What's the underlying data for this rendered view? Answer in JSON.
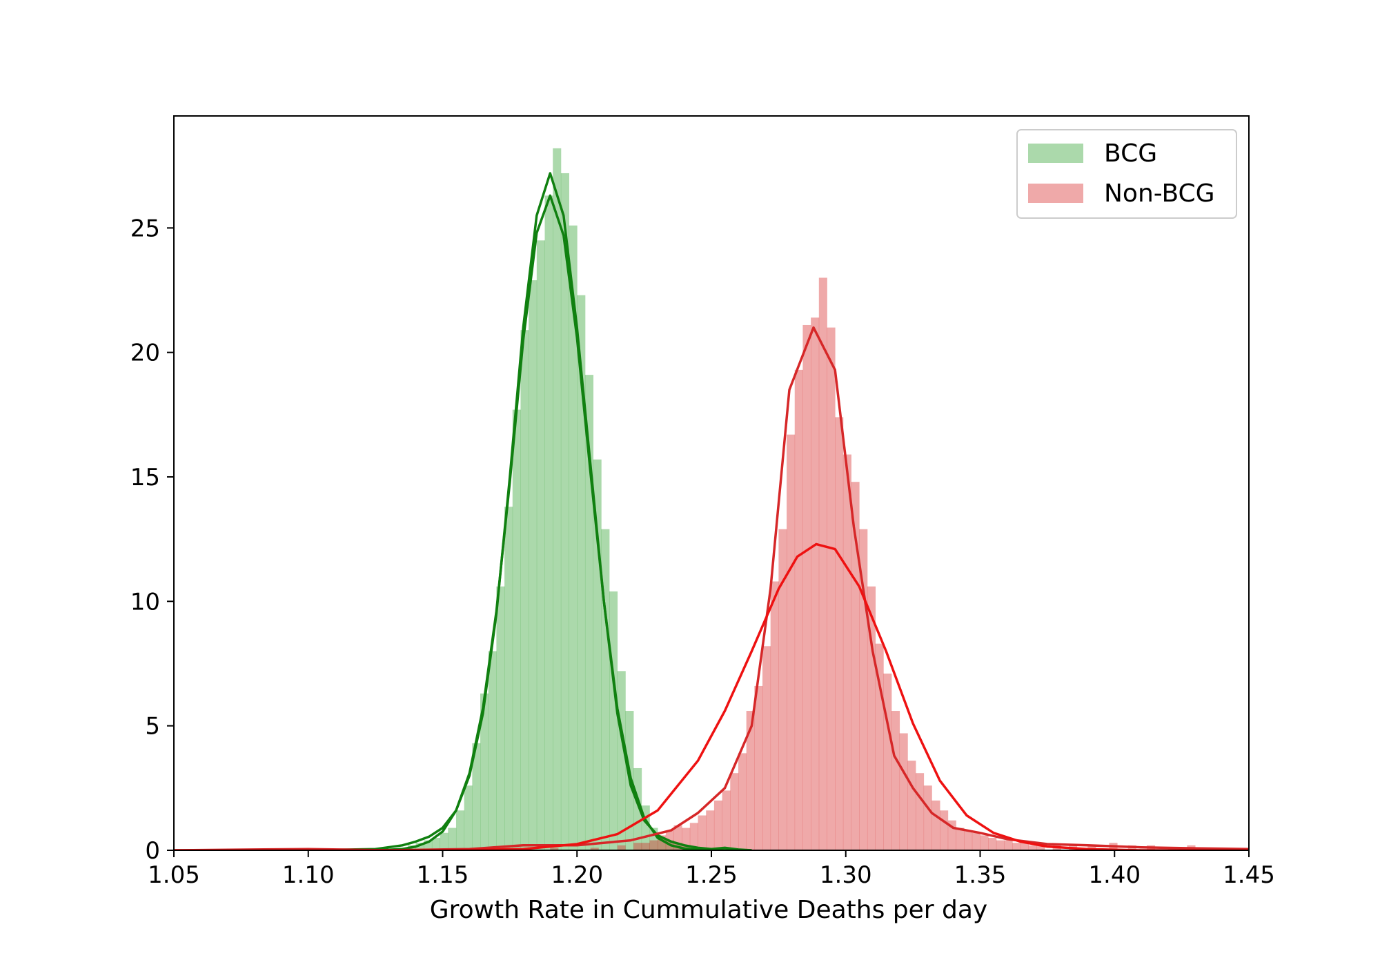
{
  "chart_data": {
    "type": "histogram",
    "title": "",
    "xlabel": "Growth Rate in Cummulative Deaths per day",
    "ylabel": "",
    "xlim": [
      1.05,
      1.45
    ],
    "ylim": [
      0,
      29.5
    ],
    "grid": false,
    "legend_position": "top-right",
    "x_ticks": [
      "1.05",
      "1.10",
      "1.15",
      "1.20",
      "1.25",
      "1.30",
      "1.35",
      "1.40",
      "1.45"
    ],
    "y_ticks": [
      "0",
      "5",
      "10",
      "15",
      "20",
      "25"
    ],
    "series": [
      {
        "name": "BCG",
        "color": "#2ca02c",
        "fill_color": "#2ca02c",
        "line_color": "#108010",
        "bin_width": 0.003,
        "bins": [
          {
            "x": 1.134,
            "y": 0.1
          },
          {
            "x": 1.137,
            "y": 0.2
          },
          {
            "x": 1.14,
            "y": 0.3
          },
          {
            "x": 1.143,
            "y": 0.4
          },
          {
            "x": 1.146,
            "y": 0.5
          },
          {
            "x": 1.149,
            "y": 0.7
          },
          {
            "x": 1.152,
            "y": 0.9
          },
          {
            "x": 1.155,
            "y": 1.6
          },
          {
            "x": 1.158,
            "y": 2.6
          },
          {
            "x": 1.161,
            "y": 4.3
          },
          {
            "x": 1.164,
            "y": 6.3
          },
          {
            "x": 1.167,
            "y": 8.0
          },
          {
            "x": 1.17,
            "y": 10.6
          },
          {
            "x": 1.173,
            "y": 13.8
          },
          {
            "x": 1.176,
            "y": 17.7
          },
          {
            "x": 1.179,
            "y": 20.9
          },
          {
            "x": 1.182,
            "y": 22.9
          },
          {
            "x": 1.185,
            "y": 24.5
          },
          {
            "x": 1.188,
            "y": 26.3
          },
          {
            "x": 1.191,
            "y": 28.2
          },
          {
            "x": 1.194,
            "y": 27.2
          },
          {
            "x": 1.197,
            "y": 25.1
          },
          {
            "x": 1.2,
            "y": 22.3
          },
          {
            "x": 1.203,
            "y": 19.1
          },
          {
            "x": 1.206,
            "y": 15.7
          },
          {
            "x": 1.209,
            "y": 12.9
          },
          {
            "x": 1.212,
            "y": 10.4
          },
          {
            "x": 1.215,
            "y": 7.2
          },
          {
            "x": 1.218,
            "y": 5.6
          },
          {
            "x": 1.221,
            "y": 3.3
          },
          {
            "x": 1.224,
            "y": 1.8
          },
          {
            "x": 1.227,
            "y": 0.9
          },
          {
            "x": 1.23,
            "y": 0.5
          },
          {
            "x": 1.233,
            "y": 0.4
          },
          {
            "x": 1.236,
            "y": 0.3
          },
          {
            "x": 1.239,
            "y": 0.2
          },
          {
            "x": 1.242,
            "y": 0.1
          },
          {
            "x": 1.254,
            "y": 0.1
          }
        ],
        "kde_curves": [
          {
            "name": "",
            "x": [
              1.1,
              1.125,
              1.135,
              1.14,
              1.145,
              1.15,
              1.155,
              1.16,
              1.165,
              1.17,
              1.175,
              1.18,
              1.185,
              1.19,
              1.195,
              1.2,
              1.205,
              1.21,
              1.215,
              1.22,
              1.225,
              1.23,
              1.235,
              1.24,
              1.245,
              1.25,
              1.255,
              1.26,
              1.265
            ],
            "y": [
              0.0,
              0.05,
              0.2,
              0.35,
              0.55,
              0.9,
              1.6,
              3.0,
              5.5,
              9.5,
              15.0,
              21.0,
              25.5,
              27.2,
              25.5,
              21.0,
              15.5,
              10.0,
              5.5,
              2.6,
              1.2,
              0.6,
              0.35,
              0.2,
              0.1,
              0.05,
              0.1,
              0.03,
              0.0
            ]
          },
          {
            "name": "",
            "x": [
              1.1,
              1.125,
              1.135,
              1.14,
              1.145,
              1.15,
              1.155,
              1.16,
              1.165,
              1.17,
              1.175,
              1.18,
              1.185,
              1.19,
              1.195,
              1.2,
              1.205,
              1.21,
              1.215,
              1.22,
              1.225,
              1.23,
              1.235,
              1.24,
              1.245,
              1.25,
              1.255,
              1.26,
              1.265
            ],
            "y": [
              0.0,
              0.0,
              0.05,
              0.15,
              0.35,
              0.75,
              1.6,
              3.1,
              5.7,
              9.6,
              14.8,
              20.5,
              24.8,
              26.3,
              24.7,
              20.6,
              15.2,
              10.0,
              5.7,
              2.9,
              1.3,
              0.5,
              0.2,
              0.07,
              0.02,
              0.0,
              0.0,
              0.0,
              0.0
            ]
          }
        ]
      },
      {
        "name": "Non-BCG",
        "color": "#d62728",
        "fill_color": "#d62728",
        "line_color": "#d62728",
        "bin_width": 0.003,
        "bins": [
          {
            "x": 1.1,
            "y": 0.05
          },
          {
            "x": 1.16,
            "y": 0.05
          },
          {
            "x": 1.172,
            "y": 0.1
          },
          {
            "x": 1.19,
            "y": 0.1
          },
          {
            "x": 1.205,
            "y": 0.1
          },
          {
            "x": 1.215,
            "y": 0.2
          },
          {
            "x": 1.221,
            "y": 0.3
          },
          {
            "x": 1.224,
            "y": 0.3
          },
          {
            "x": 1.227,
            "y": 0.4
          },
          {
            "x": 1.23,
            "y": 0.6
          },
          {
            "x": 1.233,
            "y": 0.8
          },
          {
            "x": 1.236,
            "y": 1.0
          },
          {
            "x": 1.239,
            "y": 0.9
          },
          {
            "x": 1.242,
            "y": 1.1
          },
          {
            "x": 1.245,
            "y": 1.4
          },
          {
            "x": 1.248,
            "y": 1.6
          },
          {
            "x": 1.251,
            "y": 2.0
          },
          {
            "x": 1.254,
            "y": 2.4
          },
          {
            "x": 1.257,
            "y": 3.1
          },
          {
            "x": 1.26,
            "y": 3.9
          },
          {
            "x": 1.263,
            "y": 5.6
          },
          {
            "x": 1.266,
            "y": 6.6
          },
          {
            "x": 1.269,
            "y": 8.2
          },
          {
            "x": 1.272,
            "y": 10.8
          },
          {
            "x": 1.275,
            "y": 12.9
          },
          {
            "x": 1.278,
            "y": 16.7
          },
          {
            "x": 1.281,
            "y": 19.3
          },
          {
            "x": 1.284,
            "y": 21.1
          },
          {
            "x": 1.287,
            "y": 21.4
          },
          {
            "x": 1.29,
            "y": 23.0
          },
          {
            "x": 1.293,
            "y": 21.0
          },
          {
            "x": 1.296,
            "y": 17.4
          },
          {
            "x": 1.299,
            "y": 15.9
          },
          {
            "x": 1.302,
            "y": 14.8
          },
          {
            "x": 1.305,
            "y": 12.9
          },
          {
            "x": 1.308,
            "y": 10.6
          },
          {
            "x": 1.311,
            "y": 8.3
          },
          {
            "x": 1.314,
            "y": 7.1
          },
          {
            "x": 1.317,
            "y": 5.6
          },
          {
            "x": 1.32,
            "y": 4.7
          },
          {
            "x": 1.323,
            "y": 3.6
          },
          {
            "x": 1.326,
            "y": 3.1
          },
          {
            "x": 1.329,
            "y": 2.6
          },
          {
            "x": 1.332,
            "y": 2.0
          },
          {
            "x": 1.335,
            "y": 1.6
          },
          {
            "x": 1.338,
            "y": 1.2
          },
          {
            "x": 1.341,
            "y": 0.9
          },
          {
            "x": 1.344,
            "y": 0.8
          },
          {
            "x": 1.347,
            "y": 0.7
          },
          {
            "x": 1.35,
            "y": 0.6
          },
          {
            "x": 1.353,
            "y": 0.5
          },
          {
            "x": 1.356,
            "y": 0.4
          },
          {
            "x": 1.359,
            "y": 0.4
          },
          {
            "x": 1.362,
            "y": 0.3
          },
          {
            "x": 1.365,
            "y": 0.3
          },
          {
            "x": 1.368,
            "y": 0.2
          },
          {
            "x": 1.371,
            "y": 0.2
          },
          {
            "x": 1.377,
            "y": 0.2
          },
          {
            "x": 1.383,
            "y": 0.2
          },
          {
            "x": 1.39,
            "y": 0.2
          },
          {
            "x": 1.398,
            "y": 0.3
          },
          {
            "x": 1.405,
            "y": 0.2
          },
          {
            "x": 1.412,
            "y": 0.2
          },
          {
            "x": 1.42,
            "y": 0.1
          },
          {
            "x": 1.427,
            "y": 0.2
          },
          {
            "x": 1.44,
            "y": 0.1
          }
        ],
        "kde_curves": [
          {
            "name": "",
            "x": [
              1.05,
              1.1,
              1.13,
              1.16,
              1.18,
              1.2,
              1.22,
              1.235,
              1.245,
              1.255,
              1.265,
              1.272,
              1.279,
              1.288,
              1.296,
              1.303,
              1.31,
              1.318,
              1.325,
              1.332,
              1.34,
              1.35,
              1.36,
              1.375,
              1.39,
              1.41,
              1.43,
              1.45
            ],
            "y": [
              0.0,
              0.05,
              0.0,
              0.05,
              0.2,
              0.2,
              0.4,
              0.8,
              1.5,
              2.5,
              5.0,
              10.5,
              18.5,
              21.0,
              19.3,
              13.0,
              8.0,
              3.8,
              2.5,
              1.5,
              0.9,
              0.7,
              0.45,
              0.25,
              0.2,
              0.12,
              0.08,
              0.05
            ]
          },
          {
            "name": "",
            "x": [
              1.05,
              1.1,
              1.15,
              1.18,
              1.2,
              1.215,
              1.23,
              1.245,
              1.255,
              1.265,
              1.275,
              1.282,
              1.289,
              1.296,
              1.305,
              1.315,
              1.325,
              1.335,
              1.345,
              1.355,
              1.365,
              1.375,
              1.39,
              1.41,
              1.45
            ],
            "y": [
              0.0,
              0.0,
              0.0,
              0.05,
              0.25,
              0.65,
              1.6,
              3.6,
              5.6,
              8.0,
              10.5,
              11.8,
              12.3,
              12.1,
              10.6,
              8.0,
              5.1,
              2.8,
              1.4,
              0.7,
              0.35,
              0.15,
              0.05,
              0.0,
              0.0
            ]
          }
        ]
      }
    ]
  }
}
